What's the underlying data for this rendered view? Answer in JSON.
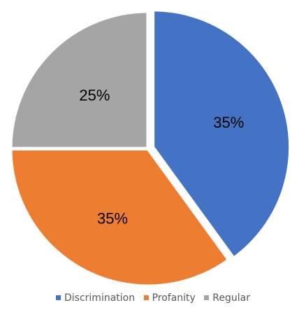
{
  "chart_data": {
    "type": "pie",
    "categories": [
      "Discrimination",
      "Profanity",
      "Regular"
    ],
    "values": [
      35,
      35,
      25
    ],
    "data_labels": [
      "35%",
      "35%",
      "25%"
    ],
    "colors": [
      "#4472C4",
      "#ED7D31",
      "#A5A5A5"
    ],
    "exploded": "Discrimination",
    "legend_position": "bottom",
    "title": ""
  },
  "legend": {
    "items": [
      {
        "label": "Discrimination",
        "color": "#4472C4"
      },
      {
        "label": "Profanity",
        "color": "#ED7D31"
      },
      {
        "label": "Regular",
        "color": "#A5A5A5"
      }
    ]
  }
}
